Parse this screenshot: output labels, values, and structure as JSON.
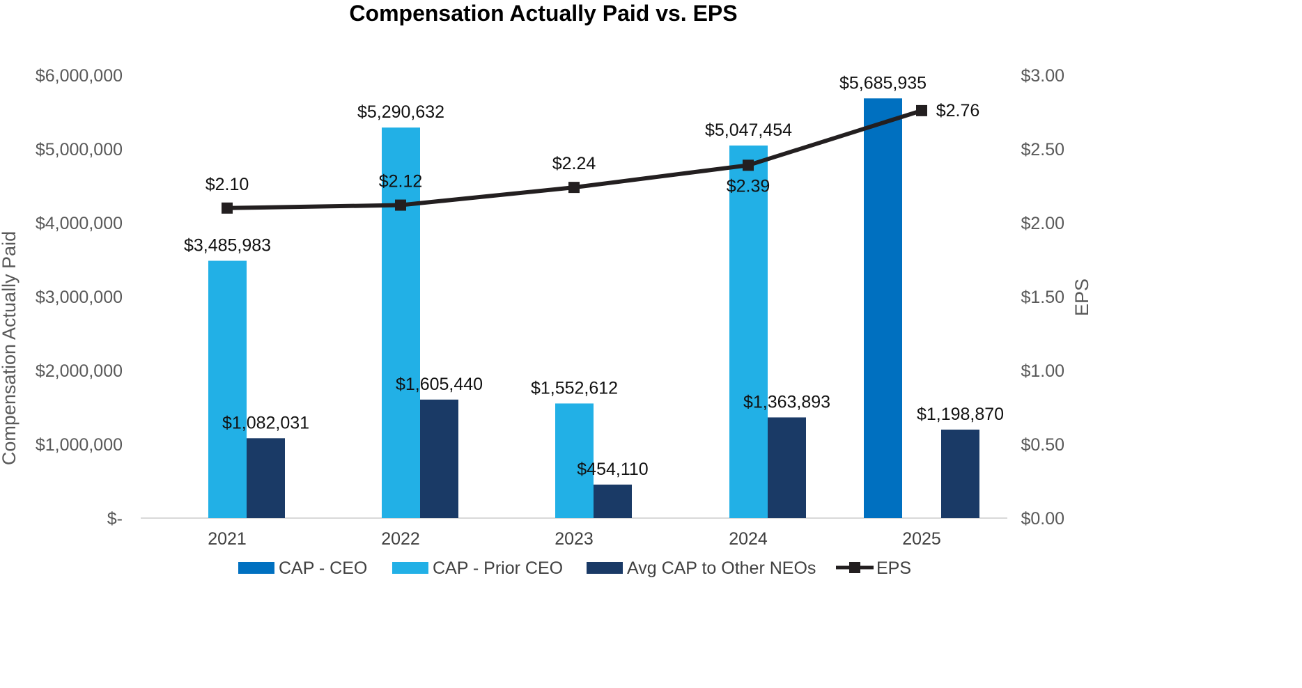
{
  "chart_data": {
    "type": "bar",
    "title": "Compensation Actually Paid vs. EPS",
    "categories": [
      "2021",
      "2022",
      "2023",
      "2024",
      "2025"
    ],
    "ylabel": "Compensation Actually Paid",
    "y2label": "EPS",
    "ylim": [
      0,
      6000000
    ],
    "y2lim": [
      0,
      3.0
    ],
    "yticks": [
      "$-",
      "$1,000,000",
      "$2,000,000",
      "$3,000,000",
      "$4,000,000",
      "$5,000,000",
      "$6,000,000"
    ],
    "y2ticks": [
      "$0.00",
      "$0.50",
      "$1.00",
      "$1.50",
      "$2.00",
      "$2.50",
      "$3.00"
    ],
    "grid": false,
    "legend_position": "bottom",
    "series": [
      {
        "name": "CAP - CEO",
        "type": "bar",
        "axis": "left",
        "color": "#0070C0",
        "values": [
          null,
          null,
          null,
          null,
          5685935
        ],
        "labels": [
          "",
          "",
          "",
          "",
          "$5,685,935"
        ]
      },
      {
        "name": "CAP - Prior CEO",
        "type": "bar",
        "axis": "left",
        "color": "#22B0E6",
        "values": [
          3485983,
          5290632,
          1552612,
          5047454,
          null
        ],
        "labels": [
          "$3,485,983",
          "$5,290,632",
          "$1,552,612",
          "$5,047,454",
          ""
        ]
      },
      {
        "name": "Avg CAP to Other NEOs",
        "type": "bar",
        "axis": "left",
        "color": "#1A3A66",
        "values": [
          1082031,
          1605440,
          454110,
          1363893,
          1198870
        ],
        "labels": [
          "$1,082,031",
          "$1,605,440",
          "$454,110",
          "$1,363,893",
          "$1,198,870"
        ]
      },
      {
        "name": "EPS",
        "type": "line",
        "axis": "right",
        "color": "#231F20",
        "values": [
          2.1,
          2.12,
          2.24,
          2.39,
          2.76
        ],
        "labels": [
          "$2.10",
          "$2.12",
          "$2.24",
          "$2.39",
          "$2.76"
        ]
      }
    ]
  }
}
